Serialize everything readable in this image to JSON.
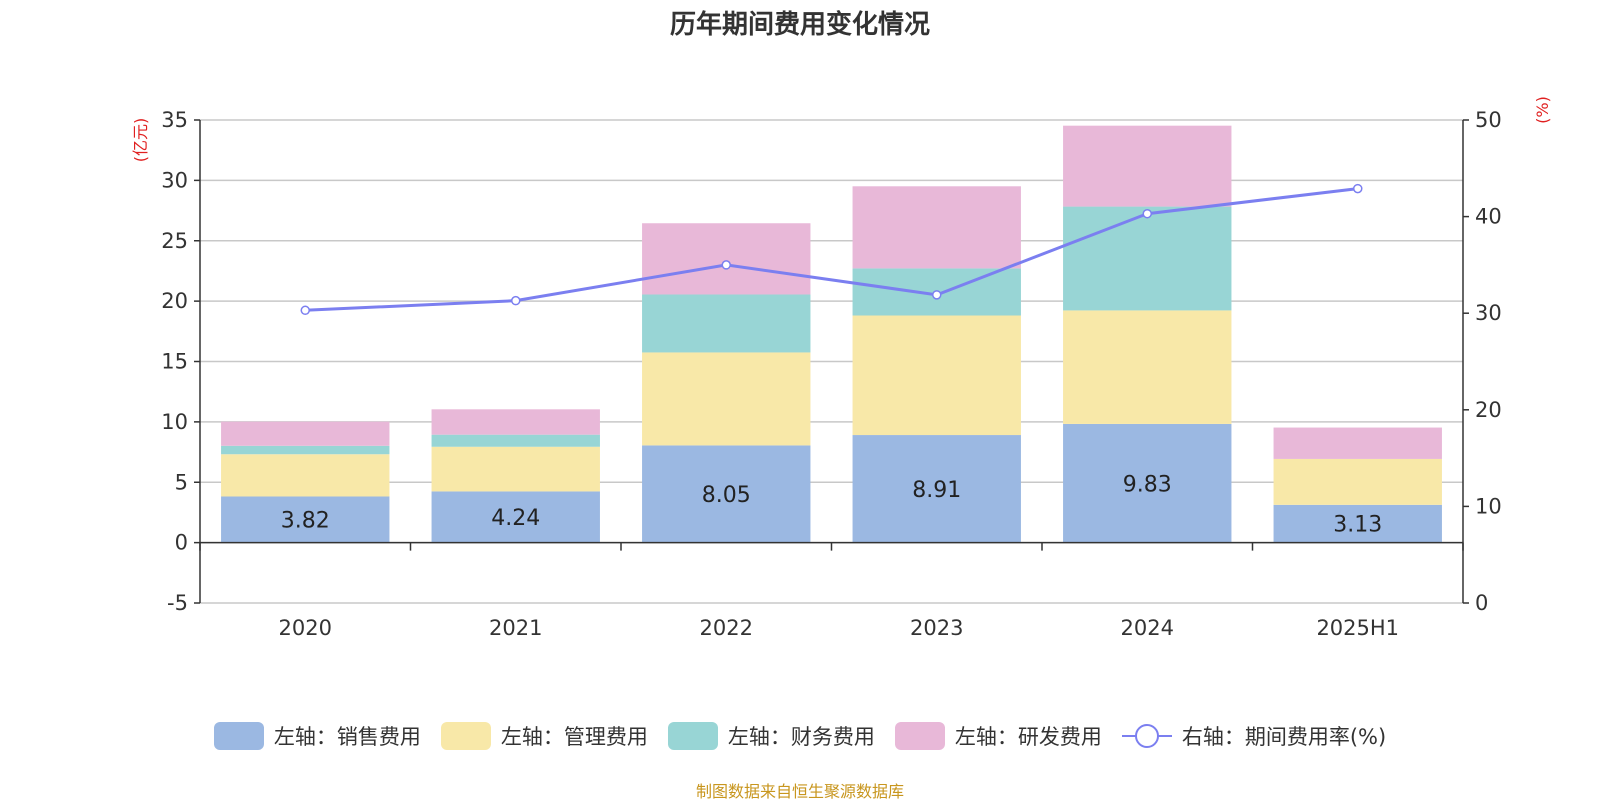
{
  "chart_data": {
    "type": "bar",
    "title": "历年期间费用变化情况",
    "categories": [
      "2020",
      "2021",
      "2022",
      "2023",
      "2024",
      "2025H1"
    ],
    "y_left": {
      "unit": "(亿元)",
      "ylim": [
        -5,
        35
      ],
      "ticks": [
        -5,
        0,
        5,
        10,
        15,
        20,
        25,
        30,
        35
      ]
    },
    "y_right": {
      "unit": "(%)",
      "ylim": [
        0,
        50
      ],
      "ticks": [
        0,
        10,
        20,
        30,
        40,
        50
      ]
    },
    "grid": true,
    "legend_position": "bottom",
    "series": [
      {
        "name": "左轴：销售费用",
        "type": "bar",
        "color": "#9bb8e2",
        "values": [
          3.82,
          4.24,
          8.05,
          8.91,
          9.83,
          3.13
        ],
        "labels": [
          "3.82",
          "4.24",
          "8.05",
          "8.91",
          "9.83",
          "3.13"
        ]
      },
      {
        "name": "左轴：管理费用",
        "type": "bar",
        "color": "#f8e8a8",
        "values": [
          3.5,
          3.7,
          7.7,
          9.9,
          9.4,
          3.8
        ]
      },
      {
        "name": "左轴：财务费用",
        "type": "bar",
        "color": "#98d5d5",
        "values": [
          0.7,
          1.0,
          4.8,
          3.9,
          8.6,
          0.0
        ]
      },
      {
        "name": "左轴：研发费用",
        "type": "bar",
        "color": "#e8b8d8",
        "values": [
          2.0,
          2.1,
          5.9,
          6.8,
          6.7,
          2.6
        ]
      },
      {
        "name": "右轴：期间费用率(%)",
        "type": "line",
        "axis": "right",
        "color": "#7b7ff0",
        "values": [
          30.3,
          31.3,
          35.0,
          31.9,
          40.3,
          42.9
        ]
      }
    ]
  },
  "source_text": "制图数据来自恒生聚源数据库"
}
